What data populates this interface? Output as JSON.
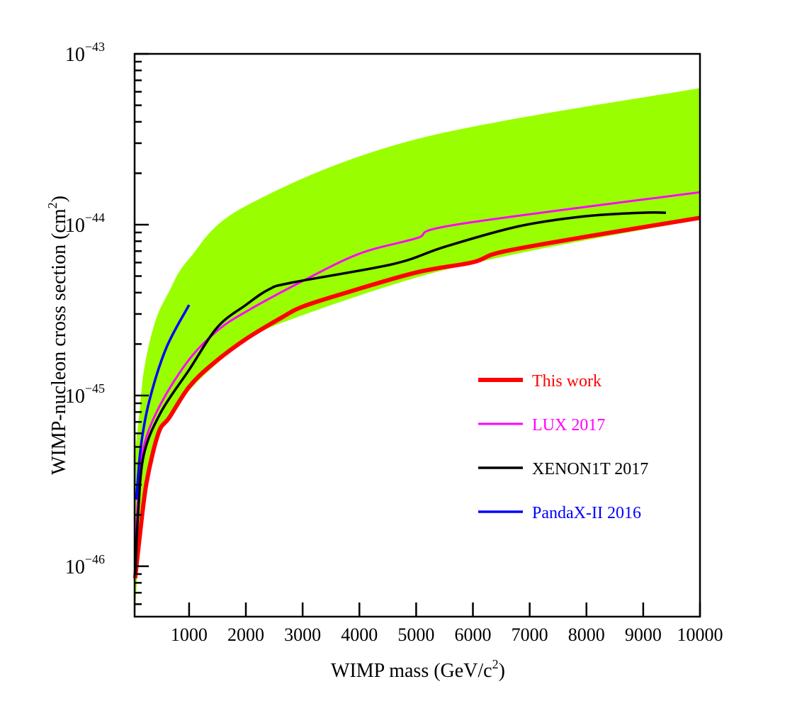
{
  "chart_data": {
    "type": "line",
    "title": "",
    "xlabel": "WIMP mass (GeV/c",
    "xlabel_sup": "2",
    "xlabel_end": ")",
    "ylabel": "WIMP-nucleon cross section (cm",
    "ylabel_sup": "2",
    "ylabel_end": ")",
    "xlim": [
      40,
      10000
    ],
    "ylim_log10": [
      -46.295,
      -43
    ],
    "yscale": "log",
    "x_ticks": [
      1000,
      2000,
      3000,
      4000,
      5000,
      6000,
      7000,
      8000,
      9000,
      10000
    ],
    "x_tick_labels": [
      "1000",
      "2000",
      "3000",
      "4000",
      "5000",
      "6000",
      "7000",
      "8000",
      "9000",
      "10000"
    ],
    "y_ticks_log10": [
      -46,
      -45,
      -44,
      -43
    ],
    "y_tick_labels": [
      {
        "base": "10",
        "exp": "−46"
      },
      {
        "base": "10",
        "exp": "−45"
      },
      {
        "base": "10",
        "exp": "−44"
      },
      {
        "base": "10",
        "exp": "−43"
      }
    ],
    "legend_position": "center-right",
    "band": {
      "color": "#99ff00",
      "upper": [
        [
          50,
          -45.33
        ],
        [
          125,
          -45.1
        ],
        [
          210,
          -44.84
        ],
        [
          400,
          -44.57
        ],
        [
          650,
          -44.39
        ],
        [
          1000,
          -44.2
        ],
        [
          2000,
          -43.89
        ],
        [
          5000,
          -43.5
        ],
        [
          10000,
          -43.2
        ]
      ],
      "lower": [
        [
          50,
          -46.25
        ],
        [
          200,
          -45.6
        ],
        [
          500,
          -45.22
        ],
        [
          1000,
          -44.97
        ],
        [
          2000,
          -44.68
        ],
        [
          3000,
          -44.53
        ],
        [
          5000,
          -44.31
        ],
        [
          6500,
          -44.19
        ],
        [
          8000,
          -44.09
        ],
        [
          10000,
          -43.97
        ]
      ]
    },
    "series": [
      {
        "name": "This work",
        "color": "#ff0000",
        "width": 6,
        "points": [
          [
            50,
            -46.07
          ],
          [
            125,
            -45.84
          ],
          [
            250,
            -45.51
          ],
          [
            460,
            -45.22
          ],
          [
            650,
            -45.13
          ],
          [
            1000,
            -44.95
          ],
          [
            1400,
            -44.82
          ],
          [
            2000,
            -44.67
          ],
          [
            2650,
            -44.54
          ],
          [
            3000,
            -44.48
          ],
          [
            3650,
            -44.41
          ],
          [
            5000,
            -44.28
          ],
          [
            6000,
            -44.22
          ],
          [
            6500,
            -44.16
          ],
          [
            8000,
            -44.07
          ],
          [
            10000,
            -43.96
          ]
        ]
      },
      {
        "name": "LUX 2017",
        "color": "#ff00ff",
        "width": 3,
        "points": [
          [
            50,
            -45.95
          ],
          [
            100,
            -45.6
          ],
          [
            200,
            -45.3
          ],
          [
            500,
            -45.05
          ],
          [
            1000,
            -44.79
          ],
          [
            1500,
            -44.62
          ],
          [
            2000,
            -44.51
          ],
          [
            3000,
            -44.33
          ],
          [
            4000,
            -44.17
          ],
          [
            5000,
            -44.08
          ],
          [
            5700,
            -44.0
          ],
          [
            10000,
            -43.81
          ]
        ]
      },
      {
        "name": "XENON1T 2017",
        "color": "#000000",
        "width": 3.5,
        "points": [
          [
            50,
            -46.05
          ],
          [
            100,
            -45.7
          ],
          [
            200,
            -45.35
          ],
          [
            500,
            -45.1
          ],
          [
            1000,
            -44.85
          ],
          [
            1500,
            -44.6
          ],
          [
            2000,
            -44.47
          ],
          [
            2400,
            -44.38
          ],
          [
            2800,
            -44.34
          ],
          [
            4600,
            -44.23
          ],
          [
            5500,
            -44.13
          ],
          [
            6800,
            -44.01
          ],
          [
            8000,
            -43.95
          ],
          [
            9000,
            -43.93
          ],
          [
            9400,
            -43.93
          ]
        ]
      },
      {
        "name": "PandaX-II 2016",
        "color": "#0000ff",
        "width": 3.5,
        "points": [
          [
            70,
            -45.61
          ],
          [
            150,
            -45.3
          ],
          [
            300,
            -45.03
          ],
          [
            600,
            -44.72
          ],
          [
            1000,
            -44.47
          ]
        ]
      }
    ]
  }
}
